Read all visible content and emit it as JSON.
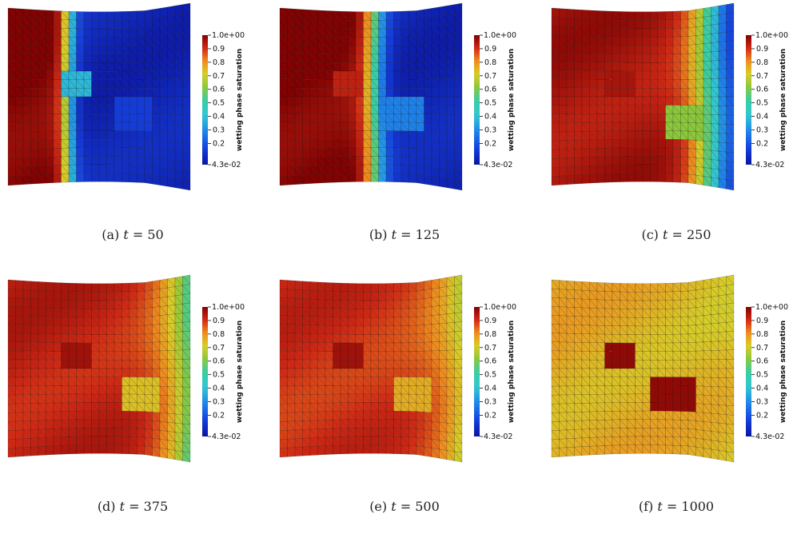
{
  "colorbar": {
    "title": "wetting phase saturation",
    "max_label": "1.0e+00",
    "min_label": "4.3e-02",
    "tick_labels": [
      "0.9",
      "0.8",
      "0.7",
      "0.6",
      "0.5",
      "0.4",
      "0.3",
      "0.2"
    ]
  },
  "colormap": {
    "low": "#0f1fa8",
    "mid": "#3fd0c6",
    "high": "#8b0000"
  },
  "panels": [
    {
      "id": "a",
      "caption_prefix": "(a) ",
      "time": "50",
      "saturation": {
        "left": 1.0,
        "front_at": 0.33,
        "front_width": 0.1,
        "right": 0.05
      },
      "inclusion_small": {
        "saturation": 0.35
      },
      "inclusion_large": {
        "saturation": 0.12
      }
    },
    {
      "id": "b",
      "caption_prefix": "(b) ",
      "time": "125",
      "saturation": {
        "left": 1.0,
        "front_at": 0.52,
        "front_width": 0.14,
        "right": 0.05
      },
      "inclusion_small": {
        "saturation": 0.92
      },
      "inclusion_large": {
        "saturation": 0.25
      }
    },
    {
      "id": "c",
      "caption_prefix": "(c) ",
      "time": "250",
      "saturation": {
        "left": 0.95,
        "front_at": 0.86,
        "front_width": 0.25,
        "right": 0.05
      },
      "inclusion_small": {
        "saturation": 0.95
      },
      "inclusion_large": {
        "saturation": 0.6
      }
    },
    {
      "id": "d",
      "caption_prefix": "(d) ",
      "time": "375",
      "saturation": {
        "left": 0.92,
        "front_at": 1.0,
        "front_width": 0.35,
        "right": 0.1
      },
      "inclusion_small": {
        "saturation": 0.96
      },
      "inclusion_large": {
        "saturation": 0.72
      }
    },
    {
      "id": "e",
      "caption_prefix": "(e) ",
      "time": "500",
      "saturation": {
        "left": 0.9,
        "front_at": 1.08,
        "front_width": 0.45,
        "right": 0.2
      },
      "inclusion_small": {
        "saturation": 0.96
      },
      "inclusion_large": {
        "saturation": 0.75
      }
    },
    {
      "id": "f",
      "caption_prefix": "(f) ",
      "time": "1000",
      "saturation": {
        "left": 0.75,
        "front_at": 1.5,
        "front_width": 1.2,
        "right": 0.55
      },
      "inclusion_small": {
        "saturation": 0.98
      },
      "inclusion_large": {
        "saturation": 0.98
      }
    }
  ]
}
